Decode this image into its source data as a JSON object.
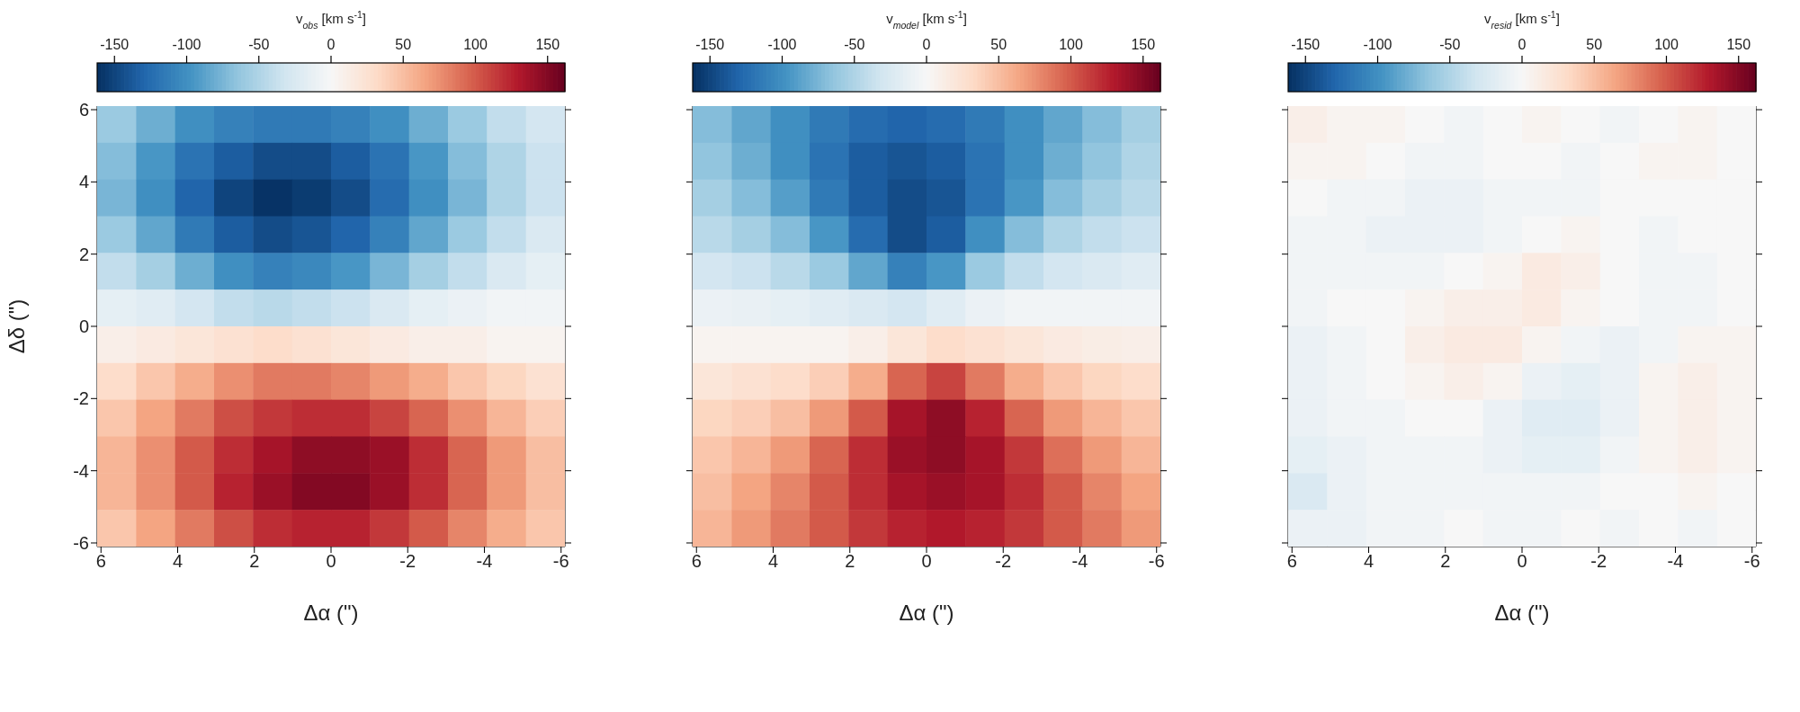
{
  "chart_data": [
    {
      "type": "heatmap",
      "clabel": "v$_{obs}$ [km s$^{-1}$]",
      "xlabel": "Δα (\")",
      "ylabel": "Δδ (\")",
      "xlim": [
        6.1,
        -6.1
      ],
      "ylim": [
        -6.1,
        6.1
      ],
      "xticks": [
        6,
        4,
        2,
        0,
        {
          "value": -2,
          "label": "-2"
        },
        {
          "value": -4,
          "label": "-4"
        },
        {
          "value": -6,
          "label": "-6"
        }
      ],
      "yticks": [
        {
          "value": -6,
          "label": "-6"
        },
        {
          "value": -4,
          "label": "-4"
        },
        {
          "value": -2,
          "label": "-2"
        },
        0,
        2,
        4,
        6
      ],
      "clim": [
        -162,
        162
      ],
      "cticks": [
        {
          "value": -150,
          "label": "-150"
        },
        {
          "value": -100,
          "label": "-100"
        },
        {
          "value": -50,
          "label": "-50"
        },
        0,
        50,
        100,
        150
      ],
      "cells": [
        [
          -60,
          -80,
          -100,
          -110,
          -115,
          -115,
          -110,
          -100,
          -80,
          -60,
          -40,
          -30
        ],
        [
          -70,
          -95,
          -120,
          -135,
          -145,
          -145,
          -135,
          -120,
          -95,
          -70,
          -50,
          -35
        ],
        [
          -75,
          -100,
          -130,
          -150,
          -160,
          -155,
          -145,
          -125,
          -100,
          -75,
          -50,
          -35
        ],
        [
          -60,
          -85,
          -115,
          -135,
          -145,
          -140,
          -130,
          -110,
          -85,
          -60,
          -40,
          -25
        ],
        [
          -40,
          -55,
          -80,
          -100,
          -110,
          -105,
          -95,
          -75,
          -55,
          -40,
          -25,
          -15
        ],
        [
          -15,
          -20,
          -30,
          -40,
          -45,
          -40,
          -35,
          -25,
          -15,
          -10,
          -5,
          -5
        ],
        [
          10,
          15,
          20,
          25,
          30,
          25,
          20,
          15,
          10,
          10,
          5,
          5
        ],
        [
          30,
          45,
          60,
          75,
          85,
          85,
          80,
          70,
          60,
          45,
          35,
          25
        ],
        [
          45,
          65,
          85,
          105,
          115,
          120,
          120,
          110,
          95,
          75,
          55,
          40
        ],
        [
          55,
          75,
          100,
          120,
          135,
          145,
          145,
          140,
          120,
          95,
          70,
          50
        ],
        [
          55,
          75,
          100,
          125,
          140,
          150,
          150,
          140,
          120,
          95,
          70,
          50
        ],
        [
          45,
          65,
          85,
          105,
          120,
          125,
          125,
          115,
          100,
          80,
          60,
          45
        ]
      ]
    },
    {
      "type": "heatmap",
      "clabel": "v$_{model}$ [km s$^{-1}$]",
      "xlabel": "Δα (\")",
      "xlim": [
        6.1,
        -6.1
      ],
      "ylim": [
        -6.1,
        6.1
      ],
      "xticks": [
        6,
        4,
        2,
        0,
        {
          "value": -2,
          "label": "-2"
        },
        {
          "value": -4,
          "label": "-4"
        },
        {
          "value": -6,
          "label": "-6"
        }
      ],
      "yticks": [
        -6,
        -4,
        -2,
        0,
        2,
        4,
        6
      ],
      "tick_labels": "x",
      "clim": [
        -162,
        162
      ],
      "cticks": [
        {
          "value": -150,
          "label": "-150"
        },
        {
          "value": -100,
          "label": "-100"
        },
        {
          "value": -50,
          "label": "-50"
        },
        0,
        50,
        100,
        150
      ],
      "cells": [
        [
          -70,
          -85,
          -100,
          -115,
          -125,
          -130,
          -125,
          -115,
          -100,
          -85,
          -70,
          -55
        ],
        [
          -65,
          -80,
          -100,
          -120,
          -135,
          -140,
          -135,
          -120,
          -100,
          -80,
          -65,
          -50
        ],
        [
          -55,
          -70,
          -90,
          -115,
          -135,
          -145,
          -140,
          -120,
          -95,
          -70,
          -55,
          -45
        ],
        [
          -45,
          -55,
          -70,
          -95,
          -125,
          -145,
          -135,
          -100,
          -70,
          -50,
          -40,
          -35
        ],
        [
          -30,
          -35,
          -45,
          -60,
          -85,
          -110,
          -95,
          -60,
          -40,
          -30,
          -25,
          -20
        ],
        [
          -10,
          -12,
          -15,
          -20,
          -25,
          -30,
          -20,
          -10,
          -5,
          -5,
          -5,
          -5
        ],
        [
          5,
          5,
          5,
          5,
          10,
          20,
          30,
          25,
          20,
          15,
          12,
          10
        ],
        [
          20,
          25,
          30,
          40,
          60,
          95,
          110,
          85,
          60,
          45,
          35,
          30
        ],
        [
          35,
          40,
          50,
          70,
          100,
          135,
          145,
          125,
          95,
          70,
          55,
          45
        ],
        [
          45,
          55,
          70,
          95,
          120,
          140,
          145,
          135,
          115,
          90,
          70,
          55
        ],
        [
          50,
          65,
          80,
          100,
          120,
          135,
          140,
          135,
          120,
          100,
          80,
          65
        ],
        [
          55,
          70,
          85,
          100,
          115,
          125,
          130,
          125,
          115,
          100,
          85,
          70
        ]
      ]
    },
    {
      "type": "heatmap",
      "clabel": "v$_{resid}$ [km s$^{-1}$]",
      "xlabel": "Δα (\")",
      "xlim": [
        6.1,
        -6.1
      ],
      "ylim": [
        -6.1,
        6.1
      ],
      "xticks": [
        6,
        4,
        2,
        0,
        {
          "value": -2,
          "label": "-2"
        },
        {
          "value": -4,
          "label": "-4"
        },
        {
          "value": -6,
          "label": "-6"
        }
      ],
      "yticks": [
        -6,
        -4,
        -2,
        0,
        2,
        4,
        6
      ],
      "tick_labels": "x",
      "clim": [
        -162,
        162
      ],
      "cticks": [
        {
          "value": -150,
          "label": "-150"
        },
        {
          "value": -100,
          "label": "-100"
        },
        {
          "value": -50,
          "label": "-50"
        },
        0,
        50,
        100,
        150
      ],
      "cells": [
        [
          10,
          5,
          5,
          0,
          -5,
          0,
          5,
          0,
          -5,
          0,
          5,
          0
        ],
        [
          5,
          5,
          0,
          -5,
          -5,
          0,
          0,
          -5,
          0,
          5,
          5,
          0
        ],
        [
          0,
          -5,
          -5,
          -10,
          -10,
          -5,
          -5,
          -5,
          0,
          0,
          0,
          0
        ],
        [
          -5,
          -5,
          -10,
          -10,
          -10,
          -5,
          0,
          5,
          0,
          -5,
          0,
          0
        ],
        [
          -5,
          -5,
          -5,
          -5,
          0,
          5,
          15,
          10,
          0,
          -5,
          -5,
          0
        ],
        [
          -5,
          0,
          0,
          5,
          10,
          10,
          15,
          5,
          0,
          -5,
          -5,
          0
        ],
        [
          -10,
          -5,
          0,
          10,
          15,
          15,
          5,
          -5,
          -10,
          -5,
          5,
          5
        ],
        [
          -10,
          -5,
          0,
          5,
          10,
          5,
          -10,
          -15,
          -10,
          5,
          10,
          5
        ],
        [
          -10,
          -5,
          -5,
          0,
          0,
          -10,
          -20,
          -20,
          -10,
          5,
          10,
          5
        ],
        [
          -15,
          -10,
          -5,
          -5,
          -5,
          -10,
          -15,
          -15,
          -5,
          5,
          10,
          5
        ],
        [
          -25,
          -10,
          -5,
          -5,
          -5,
          -5,
          -5,
          -5,
          0,
          0,
          5,
          0
        ],
        [
          -10,
          -10,
          -5,
          -5,
          0,
          -5,
          -5,
          0,
          -5,
          0,
          -5,
          0
        ]
      ]
    }
  ]
}
